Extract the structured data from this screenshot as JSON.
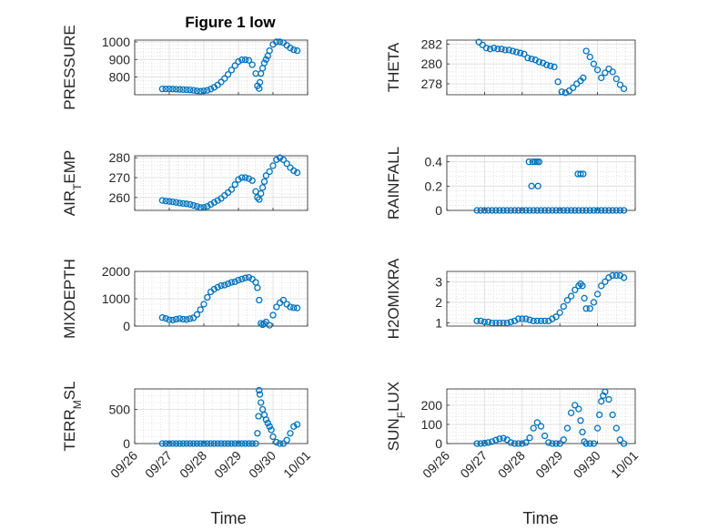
{
  "figure": {
    "title": "Figure 1 low",
    "xlabel": "Time",
    "marker_color": "#0072BD",
    "x_ticks": [
      "09/26",
      "09/27",
      "09/28",
      "09/29",
      "09/30",
      "10/01"
    ]
  },
  "chart_data": [
    {
      "type": "scatter",
      "ylabel": "PRESSURE",
      "title": "Figure 1 low",
      "xlim": [
        "09/26",
        "10/01"
      ],
      "ylim": [
        700,
        1010
      ],
      "yticks": [
        800,
        900,
        1000
      ],
      "grid": true,
      "x_day": [
        26.8,
        26.9,
        27.0,
        27.1,
        27.2,
        27.3,
        27.4,
        27.5,
        27.6,
        27.7,
        27.8,
        27.9,
        28.0,
        28.1,
        28.2,
        28.3,
        28.4,
        28.5,
        28.6,
        28.7,
        28.8,
        28.9,
        29.0,
        29.1,
        29.2,
        29.3,
        29.4,
        29.5,
        29.55,
        29.6,
        29.62,
        29.65,
        29.7,
        29.75,
        29.8,
        29.85,
        29.9,
        30.0,
        30.1,
        30.2,
        30.3,
        30.4,
        30.5,
        30.6,
        30.7
      ],
      "y": [
        733,
        733,
        733,
        732,
        731,
        730,
        729,
        728,
        727,
        725,
        722,
        720,
        722,
        725,
        732,
        742,
        755,
        772,
        792,
        815,
        840,
        865,
        888,
        898,
        898,
        895,
        870,
        820,
        750,
        735,
        770,
        820,
        850,
        880,
        900,
        920,
        950,
        985,
        1000,
        1000,
        995,
        980,
        965,
        955,
        950
      ]
    },
    {
      "type": "scatter",
      "ylabel": "THETA",
      "xlim": [
        "09/26",
        "10/01"
      ],
      "ylim": [
        276.9,
        282.4
      ],
      "yticks": [
        278,
        280,
        282
      ],
      "grid": true,
      "x_day": [
        26.85,
        26.95,
        27.05,
        27.15,
        27.25,
        27.35,
        27.45,
        27.55,
        27.65,
        27.75,
        27.85,
        27.95,
        28.05,
        28.15,
        28.25,
        28.35,
        28.45,
        28.55,
        28.65,
        28.75,
        28.85,
        28.95,
        29.05,
        29.15,
        29.25,
        29.35,
        29.45,
        29.55,
        29.62,
        29.7,
        29.8,
        29.9,
        30.0,
        30.1,
        30.2,
        30.3,
        30.4,
        30.5,
        30.6,
        30.7
      ],
      "y": [
        282.2,
        281.9,
        281.6,
        281.5,
        281.6,
        281.5,
        281.5,
        281.4,
        281.4,
        281.3,
        281.2,
        281.1,
        281.0,
        280.6,
        280.5,
        280.4,
        280.2,
        280.1,
        279.9,
        279.8,
        279.7,
        278.2,
        277.2,
        277.1,
        277.3,
        277.6,
        278.0,
        278.3,
        278.6,
        281.3,
        280.7,
        280.0,
        279.4,
        278.6,
        279.1,
        279.5,
        279.2,
        278.5,
        277.9,
        277.5
      ]
    },
    {
      "type": "scatter",
      "ylabel": "AIR_TEMP",
      "xlim": [
        "09/26",
        "10/01"
      ],
      "ylim": [
        253.5,
        281
      ],
      "yticks": [
        260,
        270,
        280
      ],
      "grid": true,
      "x_day": [
        26.8,
        26.9,
        27.0,
        27.1,
        27.2,
        27.3,
        27.4,
        27.5,
        27.6,
        27.7,
        27.8,
        27.9,
        28.0,
        28.1,
        28.2,
        28.3,
        28.4,
        28.5,
        28.6,
        28.7,
        28.8,
        28.9,
        29.0,
        29.1,
        29.2,
        29.3,
        29.4,
        29.5,
        29.55,
        29.6,
        29.65,
        29.7,
        29.75,
        29.8,
        29.9,
        30.0,
        30.1,
        30.2,
        30.3,
        30.4,
        30.5,
        30.6,
        30.7
      ],
      "y": [
        258.5,
        258.2,
        258,
        257.8,
        257.5,
        257.2,
        257,
        256.8,
        256.5,
        256,
        255.5,
        255,
        255,
        255.5,
        256.5,
        257.5,
        258.5,
        259.5,
        261,
        262.5,
        264,
        266.5,
        269,
        270,
        270,
        269.5,
        268.5,
        263,
        260,
        259,
        262,
        265,
        268,
        271,
        273,
        276,
        279,
        280,
        279,
        277,
        275,
        273.5,
        272.5
      ]
    },
    {
      "type": "scatter",
      "ylabel": "RAINFALL",
      "xlim": [
        "09/26",
        "10/01"
      ],
      "ylim": [
        0,
        0.45
      ],
      "yticks": [
        0,
        0.2,
        0.4
      ],
      "grid": true,
      "x_day": [
        26.8,
        26.9,
        27.0,
        27.1,
        27.2,
        27.3,
        27.4,
        27.5,
        27.6,
        27.7,
        27.8,
        27.9,
        28.0,
        28.1,
        28.2,
        28.3,
        28.4,
        28.5,
        28.6,
        28.7,
        28.8,
        28.9,
        29.0,
        29.1,
        29.2,
        29.3,
        29.4,
        29.5,
        29.6,
        29.7,
        29.8,
        29.9,
        30.0,
        30.1,
        30.2,
        30.3,
        30.4,
        30.5,
        30.6,
        30.7,
        28.18,
        28.28,
        28.35,
        28.4,
        28.45,
        28.25,
        28.42,
        29.48,
        29.55,
        29.62
      ],
      "y": [
        0,
        0,
        0,
        0,
        0,
        0,
        0,
        0,
        0,
        0,
        0,
        0,
        0,
        0,
        0,
        0,
        0,
        0,
        0,
        0,
        0,
        0,
        0,
        0,
        0,
        0,
        0,
        0,
        0,
        0,
        0,
        0,
        0,
        0,
        0,
        0,
        0,
        0,
        0,
        0,
        0.4,
        0.4,
        0.4,
        0.4,
        0.4,
        0.2,
        0.2,
        0.3,
        0.3,
        0.3
      ]
    },
    {
      "type": "scatter",
      "ylabel": "MIXDEPTH",
      "xlim": [
        "09/26",
        "10/01"
      ],
      "ylim": [
        0,
        2000
      ],
      "yticks": [
        0,
        1000,
        2000
      ],
      "grid": true,
      "x_day": [
        26.8,
        26.9,
        27.0,
        27.1,
        27.2,
        27.3,
        27.4,
        27.5,
        27.6,
        27.7,
        27.8,
        27.9,
        28.0,
        28.1,
        28.2,
        28.3,
        28.4,
        28.5,
        28.6,
        28.7,
        28.8,
        28.9,
        29.0,
        29.1,
        29.2,
        29.3,
        29.4,
        29.5,
        29.55,
        29.6,
        29.65,
        29.7,
        29.75,
        29.8,
        29.9,
        30.0,
        30.1,
        30.2,
        30.3,
        30.4,
        30.5,
        30.6,
        30.7
      ],
      "y": [
        310,
        280,
        230,
        220,
        250,
        270,
        250,
        240,
        270,
        300,
        420,
        600,
        800,
        1050,
        1250,
        1350,
        1420,
        1480,
        1500,
        1550,
        1600,
        1620,
        1680,
        1720,
        1760,
        1780,
        1720,
        1600,
        1400,
        950,
        100,
        50,
        80,
        150,
        30,
        400,
        700,
        850,
        950,
        800,
        700,
        670,
        660
      ]
    },
    {
      "type": "scatter",
      "ylabel": "H2OMIXRA",
      "xlim": [
        "09/26",
        "10/01"
      ],
      "ylim": [
        0.85,
        3.5
      ],
      "yticks": [
        1,
        2,
        3
      ],
      "grid": true,
      "x_day": [
        26.8,
        26.9,
        27.0,
        27.1,
        27.2,
        27.3,
        27.4,
        27.5,
        27.6,
        27.7,
        27.8,
        27.9,
        28.0,
        28.1,
        28.2,
        28.3,
        28.4,
        28.5,
        28.6,
        28.7,
        28.8,
        28.9,
        29.0,
        29.1,
        29.2,
        29.3,
        29.4,
        29.5,
        29.55,
        29.6,
        29.65,
        29.7,
        29.8,
        29.9,
        30.0,
        30.1,
        30.2,
        30.3,
        30.4,
        30.5,
        30.6,
        30.7
      ],
      "y": [
        1.1,
        1.1,
        1.05,
        1.05,
        1.0,
        1.0,
        1.0,
        1.0,
        1.0,
        1.05,
        1.1,
        1.2,
        1.2,
        1.2,
        1.15,
        1.1,
        1.1,
        1.1,
        1.1,
        1.1,
        1.2,
        1.3,
        1.5,
        1.8,
        2.1,
        2.3,
        2.6,
        2.8,
        2.9,
        2.8,
        2.2,
        1.7,
        1.7,
        2.0,
        2.4,
        2.8,
        3.0,
        3.2,
        3.3,
        3.3,
        3.3,
        3.2
      ]
    },
    {
      "type": "scatter",
      "ylabel": "TERR_MSL",
      "xlim": [
        "09/26",
        "10/01"
      ],
      "ylim": [
        0,
        800
      ],
      "yticks": [
        0,
        500
      ],
      "grid": true,
      "x_day": [
        26.8,
        26.9,
        27.0,
        27.1,
        27.2,
        27.3,
        27.4,
        27.5,
        27.6,
        27.7,
        27.8,
        27.9,
        28.0,
        28.1,
        28.2,
        28.3,
        28.4,
        28.5,
        28.6,
        28.7,
        28.8,
        28.9,
        29.0,
        29.1,
        29.2,
        29.3,
        29.4,
        29.5,
        29.55,
        29.58,
        29.6,
        29.62,
        29.65,
        29.7,
        29.75,
        29.8,
        29.85,
        29.9,
        29.95,
        30.0,
        30.1,
        30.2,
        30.3,
        30.4,
        30.5,
        30.6,
        30.7
      ],
      "y": [
        0,
        0,
        0,
        0,
        0,
        0,
        0,
        0,
        0,
        0,
        0,
        0,
        0,
        0,
        0,
        0,
        0,
        0,
        0,
        0,
        0,
        0,
        0,
        0,
        0,
        0,
        0,
        0,
        150,
        400,
        780,
        720,
        600,
        500,
        420,
        350,
        300,
        250,
        200,
        100,
        20,
        0,
        0,
        50,
        150,
        250,
        280
      ]
    },
    {
      "type": "scatter",
      "ylabel": "SUN_FLUX",
      "xlim": [
        "09/26",
        "10/01"
      ],
      "ylim": [
        0,
        285
      ],
      "yticks": [
        0,
        100,
        200
      ],
      "grid": true,
      "x_day": [
        26.8,
        26.9,
        27.0,
        27.1,
        27.2,
        27.3,
        27.4,
        27.5,
        27.6,
        27.7,
        27.8,
        27.9,
        28.0,
        28.1,
        28.2,
        28.3,
        28.4,
        28.5,
        28.6,
        28.7,
        28.8,
        28.9,
        29.0,
        29.1,
        29.2,
        29.3,
        29.4,
        29.5,
        29.55,
        29.6,
        29.65,
        29.7,
        29.8,
        29.9,
        30.0,
        30.05,
        30.1,
        30.15,
        30.2,
        30.3,
        30.4,
        30.5,
        30.6,
        30.7
      ],
      "y": [
        0,
        0,
        2,
        5,
        10,
        18,
        25,
        28,
        20,
        5,
        0,
        0,
        0,
        5,
        30,
        80,
        110,
        90,
        40,
        5,
        0,
        0,
        0,
        20,
        80,
        160,
        200,
        180,
        120,
        60,
        10,
        0,
        0,
        0,
        80,
        150,
        220,
        250,
        270,
        230,
        150,
        80,
        20,
        0
      ]
    }
  ]
}
